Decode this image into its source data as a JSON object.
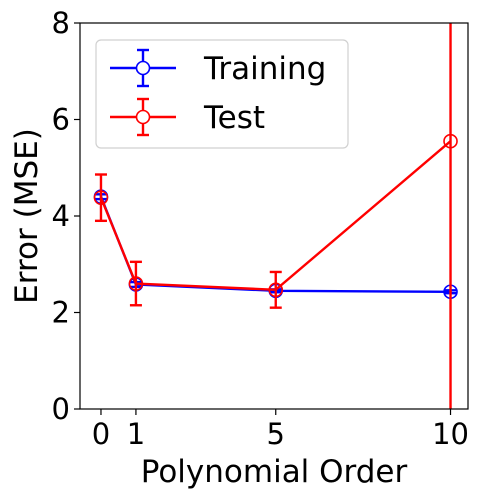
{
  "chart_data": {
    "type": "line",
    "title": "",
    "xlabel": "Polynomial Order",
    "ylabel": "Error (MSE)",
    "xlim": [
      -0.6,
      10.5
    ],
    "ylim": [
      0,
      8
    ],
    "xticks": [
      0,
      1,
      5,
      10
    ],
    "xtick_labels": [
      "0",
      "1",
      "5",
      "10"
    ],
    "yticks": [
      0,
      2,
      4,
      6,
      8
    ],
    "ytick_labels": [
      "0",
      "2",
      "4",
      "6",
      "8"
    ],
    "grid": false,
    "legend_position": "top-left",
    "x": [
      0,
      1,
      5,
      10
    ],
    "series": [
      {
        "name": "Training",
        "color": "#0000ff",
        "values": [
          4.4,
          2.58,
          2.45,
          2.43
        ],
        "error": [
          0.05,
          0.05,
          0.03,
          0.03
        ],
        "marker": "open-circle"
      },
      {
        "name": "Test",
        "color": "#ff0000",
        "values": [
          4.38,
          2.6,
          2.47,
          5.55
        ],
        "error": [
          0.48,
          0.45,
          0.37,
          6.0
        ],
        "marker": "open-circle"
      }
    ]
  }
}
